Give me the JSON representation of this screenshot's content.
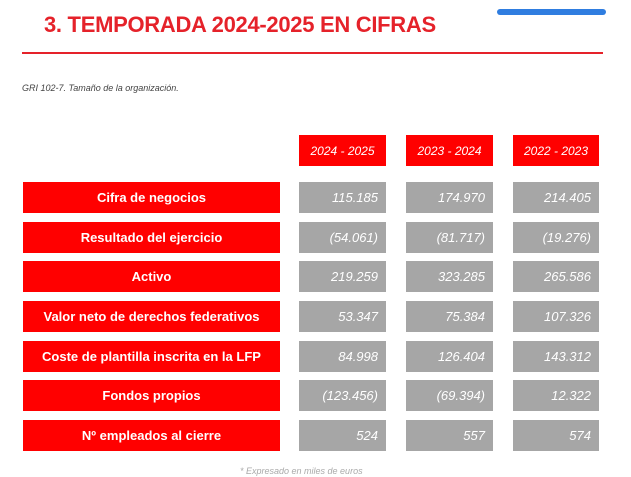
{
  "title": "3. TEMPORADA 2024-2025 EN CIFRAS",
  "subtitle": "GRI 102-7. Tamaño de la organización.",
  "columns": [
    "2024 - 2025",
    "2023 - 2024",
    "2022 - 2023"
  ],
  "rows": [
    {
      "label": "Cifra de negocios",
      "values": [
        "115.185",
        "174.970",
        "214.405"
      ]
    },
    {
      "label": "Resultado del ejercicio",
      "values": [
        "(54.061)",
        "(81.717)",
        "(19.276)"
      ]
    },
    {
      "label": "Activo",
      "values": [
        "219.259",
        "323.285",
        "265.586"
      ]
    },
    {
      "label": "Valor neto de derechos federativos",
      "values": [
        "53.347",
        "75.384",
        "107.326"
      ]
    },
    {
      "label": "Coste de plantilla inscrita en la LFP",
      "values": [
        "84.998",
        "126.404",
        "143.312"
      ]
    },
    {
      "label": "Fondos propios",
      "values": [
        "(123.456)",
        "(69.394)",
        "12.322"
      ]
    },
    {
      "label": "Nº empleados al cierre",
      "values": [
        "524",
        "557",
        "574"
      ]
    }
  ],
  "footnote": "* Expresado en miles de euros",
  "colors": {
    "accent": "#e5222a",
    "header": "#ff0000",
    "cell": "#a6a6a6"
  }
}
